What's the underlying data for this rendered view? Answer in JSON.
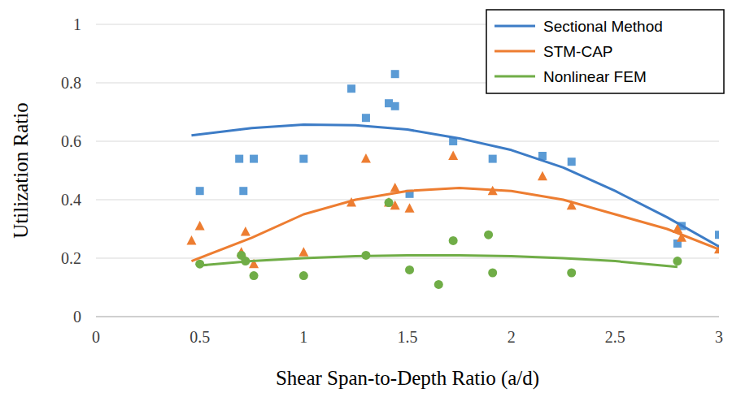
{
  "chart_data": {
    "type": "scatter",
    "x_label": "Shear Span-to-Depth Ratio (a/d)",
    "y_label": "Utilization Ratio",
    "xlim": [
      0,
      3
    ],
    "xticks": [
      0,
      0.5,
      1,
      1.5,
      2,
      2.5,
      3
    ],
    "ylim": [
      0,
      1
    ],
    "yticks": [
      0,
      0.2,
      0.4,
      0.6,
      0.8,
      1
    ],
    "grid": true,
    "legend": "top-right",
    "series": [
      {
        "type": "scatter",
        "color": "#5b9bd5",
        "marker": "square",
        "x": [
          0.5,
          0.69,
          0.71,
          0.76,
          1.0,
          1.23,
          1.3,
          1.41,
          1.44,
          1.44,
          1.51,
          1.72,
          1.91,
          2.15,
          2.29,
          2.8,
          2.82,
          3.0
        ],
        "values": [
          0.43,
          0.54,
          0.43,
          0.54,
          0.54,
          0.78,
          0.68,
          0.73,
          0.83,
          0.72,
          0.42,
          0.6,
          0.54,
          0.55,
          0.53,
          0.25,
          0.31,
          0.28
        ]
      },
      {
        "name": "Sectional Method",
        "type": "line",
        "color": "#3d7cc6",
        "line_style": "solid",
        "x": [
          0.46,
          0.75,
          1.0,
          1.25,
          1.5,
          1.75,
          2.0,
          2.25,
          2.5,
          2.75,
          3.0
        ],
        "values": [
          0.62,
          0.645,
          0.657,
          0.655,
          0.64,
          0.61,
          0.57,
          0.51,
          0.43,
          0.34,
          0.24
        ]
      },
      {
        "type": "scatter",
        "color": "#ed7d31",
        "marker": "triangle",
        "x": [
          0.46,
          0.5,
          0.7,
          0.72,
          0.76,
          1.0,
          1.23,
          1.3,
          1.41,
          1.44,
          1.44,
          1.51,
          1.72,
          1.91,
          2.15,
          2.29,
          2.8,
          2.82,
          3.0
        ],
        "values": [
          0.26,
          0.31,
          0.22,
          0.29,
          0.18,
          0.22,
          0.39,
          0.54,
          0.39,
          0.44,
          0.38,
          0.37,
          0.55,
          0.43,
          0.48,
          0.38,
          0.3,
          0.27,
          0.23
        ]
      },
      {
        "name": "STM-CAP",
        "type": "line",
        "color": "#ed7d31",
        "line_style": "solid",
        "x": [
          0.46,
          0.75,
          1.0,
          1.25,
          1.5,
          1.75,
          2.0,
          2.25,
          2.5,
          2.75,
          3.0
        ],
        "values": [
          0.19,
          0.27,
          0.35,
          0.4,
          0.43,
          0.44,
          0.43,
          0.4,
          0.35,
          0.3,
          0.23
        ]
      },
      {
        "type": "scatter",
        "color": "#70ad47",
        "marker": "circle",
        "x": [
          0.5,
          0.7,
          0.72,
          0.76,
          1.0,
          1.3,
          1.41,
          1.51,
          1.65,
          1.72,
          1.89,
          1.91,
          2.29,
          2.8
        ],
        "values": [
          0.18,
          0.21,
          0.19,
          0.14,
          0.14,
          0.21,
          0.39,
          0.16,
          0.11,
          0.26,
          0.28,
          0.15,
          0.15,
          0.19
        ]
      },
      {
        "name": "Nonlinear FEM",
        "type": "line",
        "color": "#70ad47",
        "line_style": "solid",
        "x": [
          0.5,
          0.75,
          1.0,
          1.25,
          1.5,
          1.75,
          2.0,
          2.25,
          2.5,
          2.8
        ],
        "values": [
          0.175,
          0.19,
          0.2,
          0.207,
          0.21,
          0.21,
          0.207,
          0.2,
          0.19,
          0.17
        ]
      }
    ]
  }
}
